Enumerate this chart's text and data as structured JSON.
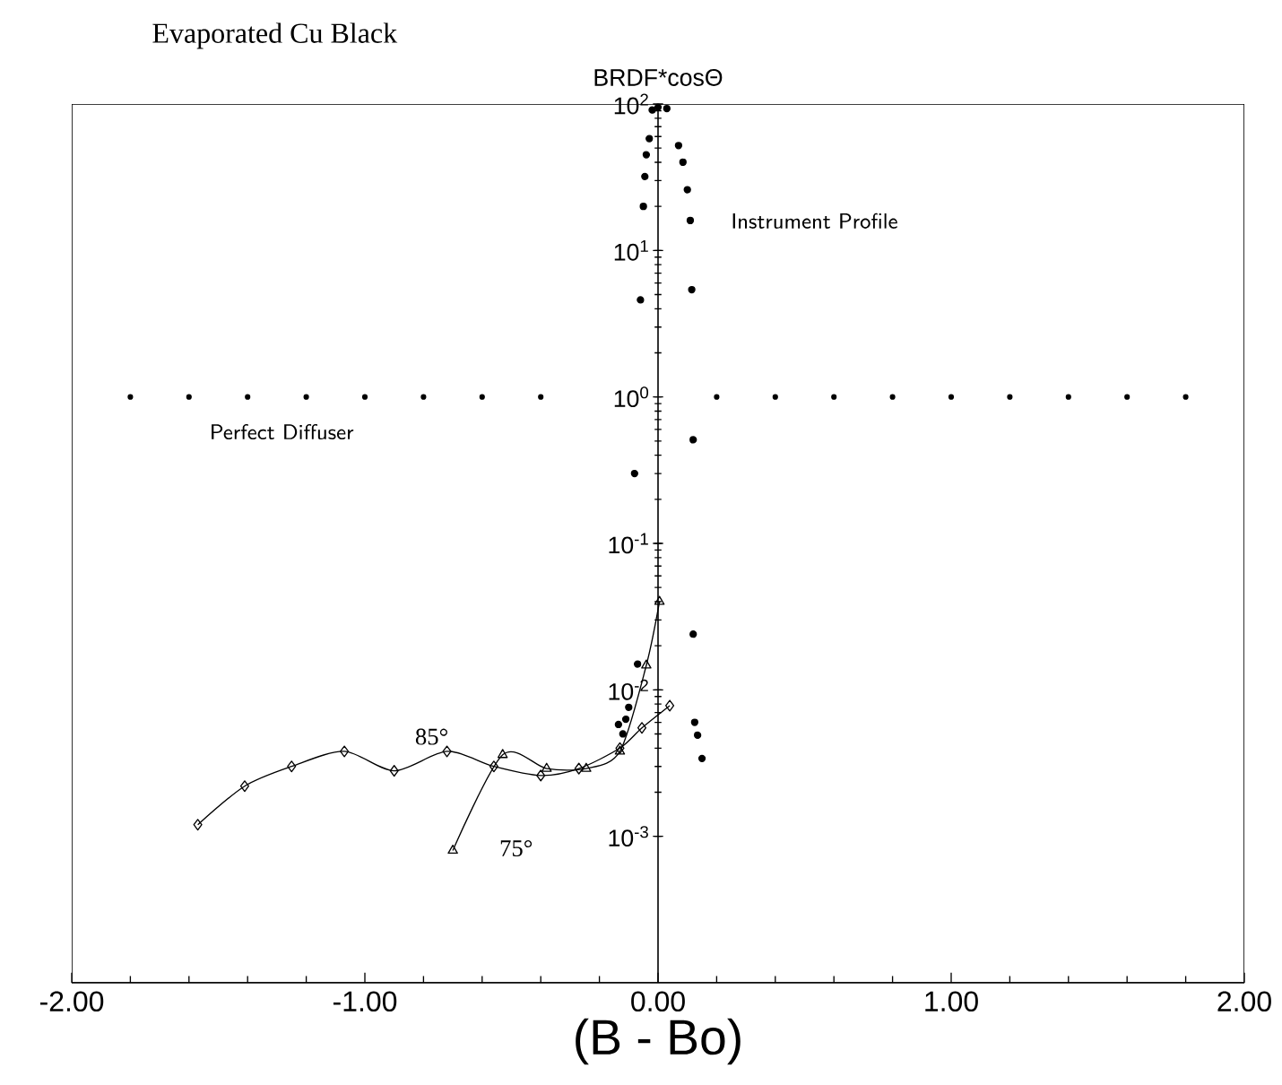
{
  "chart_data": {
    "type": "line",
    "title": "Evaporated Cu Black",
    "subtitle": "BRDF*cosΘ",
    "xlabel": "(B  -  Bo)",
    "log": "y",
    "xlim": [
      -2,
      2
    ],
    "ylim": [
      0.0001,
      100
    ],
    "xticks": [
      {
        "value": -2,
        "label": "-2.00"
      },
      {
        "value": -1,
        "label": "-1.00"
      },
      {
        "value": 0,
        "label": "0.00"
      },
      {
        "value": 1,
        "label": "1.00"
      },
      {
        "value": 2,
        "label": "2.00"
      }
    ],
    "yticks": [
      {
        "value": 0.001,
        "label": "10$^{-3}$"
      },
      {
        "value": 0.01,
        "label": "10$^{-2}$"
      },
      {
        "value": 0.1,
        "label": "10$^{-1}$"
      },
      {
        "value": 1,
        "label": "10$^{0}$"
      },
      {
        "value": 10,
        "label": "10$^{1}$"
      },
      {
        "value": 100,
        "label": "10$^{2}$"
      }
    ],
    "series": [
      {
        "name": "Perfect Diffuser",
        "type": "scatter",
        "marker": "circle",
        "color": "#000000",
        "x": [
          -1.8,
          -1.6,
          -1.4,
          -1.2,
          -1.0,
          -0.8,
          -0.6,
          -0.4,
          0.2,
          0.4,
          0.6,
          0.8,
          1.0,
          1.2,
          1.4,
          1.6,
          1.8
        ],
        "values": [
          1,
          1,
          1,
          1,
          1,
          1,
          1,
          1,
          1,
          1,
          1,
          1,
          1,
          1,
          1,
          1,
          1
        ]
      },
      {
        "name": "Instrument Profile",
        "type": "scatter",
        "marker": "circle",
        "color": "#000000",
        "x": [
          -0.135,
          -0.12,
          -0.11,
          -0.1,
          -0.07,
          -0.08,
          -0.06,
          -0.05,
          -0.045,
          -0.04,
          -0.03,
          -0.02,
          0.0,
          0.03,
          0.07,
          0.085,
          0.1,
          0.11,
          0.115,
          0.12,
          0.12,
          0.125,
          0.135,
          0.15
        ],
        "values": [
          0.0058,
          0.005,
          0.0063,
          0.0076,
          0.015,
          0.3,
          4.6,
          20,
          32,
          45,
          58,
          91,
          95,
          93,
          52,
          40,
          26,
          16,
          5.4,
          0.51,
          0.024,
          0.006,
          0.0049,
          0.0034
        ]
      },
      {
        "name": "85°",
        "marker": "diamond",
        "color": "#000000",
        "x": [
          -1.57,
          -1.41,
          -1.25,
          -1.07,
          -0.9,
          -0.72,
          -0.56,
          -0.4,
          -0.27,
          -0.13,
          -0.055,
          0.04
        ],
        "values": [
          0.0012,
          0.0022,
          0.003,
          0.0038,
          0.0028,
          0.0038,
          0.003,
          0.0026,
          0.0029,
          0.004,
          0.0055,
          0.0078
        ]
      },
      {
        "name": "75°",
        "marker": "triangle",
        "color": "#000000",
        "x": [
          -0.7,
          -0.53,
          -0.38,
          -0.245,
          -0.13,
          -0.04,
          0.005
        ],
        "values": [
          0.0008,
          0.0036,
          0.0029,
          0.0029,
          0.0038,
          0.0147,
          0.04
        ]
      }
    ]
  }
}
